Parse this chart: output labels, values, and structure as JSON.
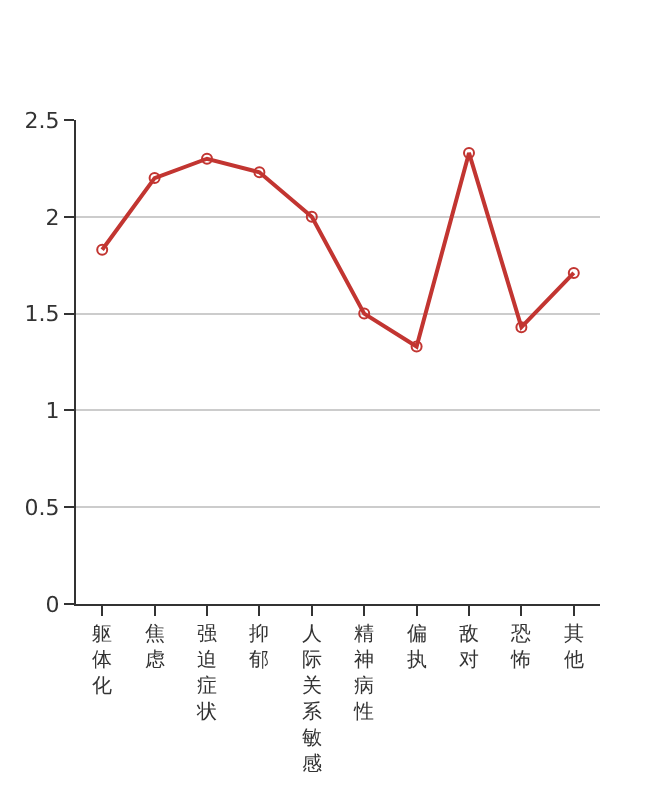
{
  "chart_data": {
    "type": "line",
    "categories": [
      "躯体化",
      "焦虑",
      "强迫症状",
      "抑郁",
      "人际关系敏感",
      "精神病性",
      "偏执",
      "敌对",
      "恐怖",
      "其他"
    ],
    "series": [
      {
        "color": "#c23531",
        "values": [
          1.83,
          2.2,
          2.3,
          2.23,
          2.0,
          1.5,
          1.33,
          2.33,
          1.43,
          1.71
        ]
      }
    ],
    "ylim": [
      0,
      2.5
    ],
    "yticks": [
      0,
      0.5,
      1,
      1.5,
      2,
      2.5
    ],
    "grid": "y",
    "marker": "circle",
    "line_style": "solid",
    "legend": false
  }
}
